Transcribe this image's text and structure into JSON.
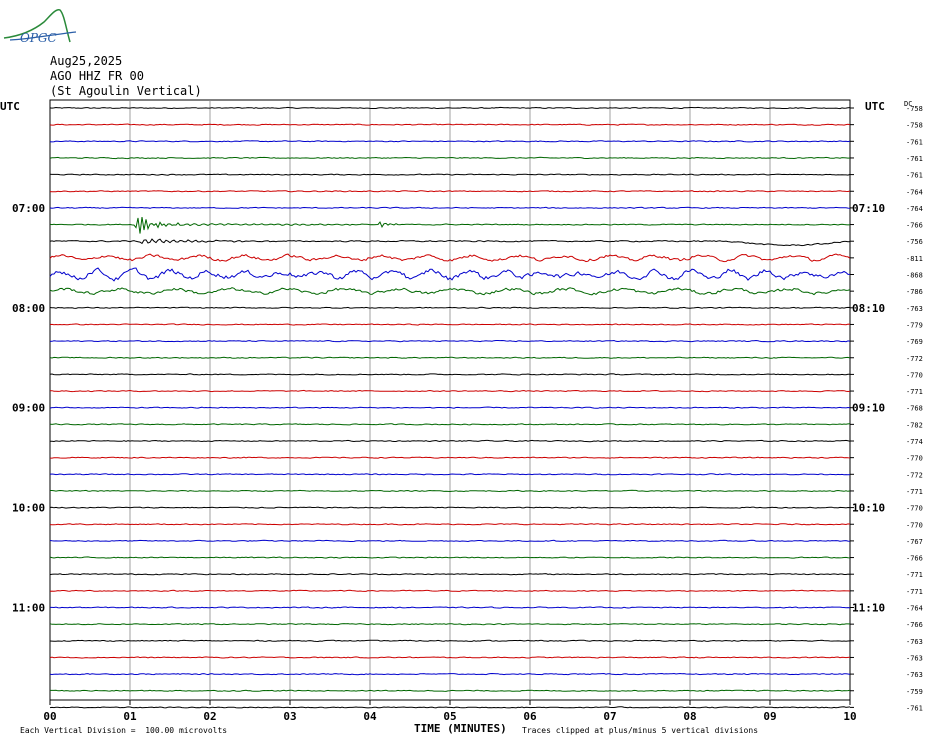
{
  "header": {
    "date": "Aug25,2025",
    "station": "AGO HHZ FR 00",
    "site": "(St Agoulin Vertical)"
  },
  "logo": {
    "text": "OPGC"
  },
  "footer": {
    "scale": "Each Vertical Division =  100.00 microvolts",
    "clip": "Traces clipped at plus/minus 5 vertical divisions"
  },
  "chart_data": {
    "type": "line",
    "subtype": "helicorder",
    "xlabel": "TIME (MINUTES)",
    "x_ticks": [
      "00",
      "01",
      "02",
      "03",
      "04",
      "05",
      "06",
      "07",
      "08",
      "09",
      "10"
    ],
    "xlim": [
      0,
      10
    ],
    "left_axis_title": "UTC",
    "right_axis_title": "UTC",
    "dc_label": "DC",
    "left_hour_labels": [
      "07:00",
      "08:00",
      "09:00",
      "10:00",
      "11:00"
    ],
    "right_hour_labels": [
      "07:10",
      "08:10",
      "09:10",
      "10:10",
      "11:10"
    ],
    "trace_colors": [
      "#000000",
      "#cc0000",
      "#0000cc",
      "#006600"
    ],
    "dc_offsets": [
      "-758",
      "-758",
      "-761",
      "-761",
      "-761",
      "-764",
      "-764",
      "-766",
      "-756",
      "-811",
      "-868",
      "-786",
      "-763",
      "-779",
      "-769",
      "-772",
      "-770",
      "-771",
      "-768",
      "-782",
      "-774",
      "-770",
      "-772",
      "-771",
      "-770",
      "-770",
      "-767",
      "-766",
      "-771",
      "-771",
      "-764",
      "-766",
      "-763",
      "-763",
      "-763",
      "-759",
      "-761"
    ],
    "events": [
      {
        "trace": 7,
        "minute": 1.05,
        "description": ""
      }
    ]
  }
}
